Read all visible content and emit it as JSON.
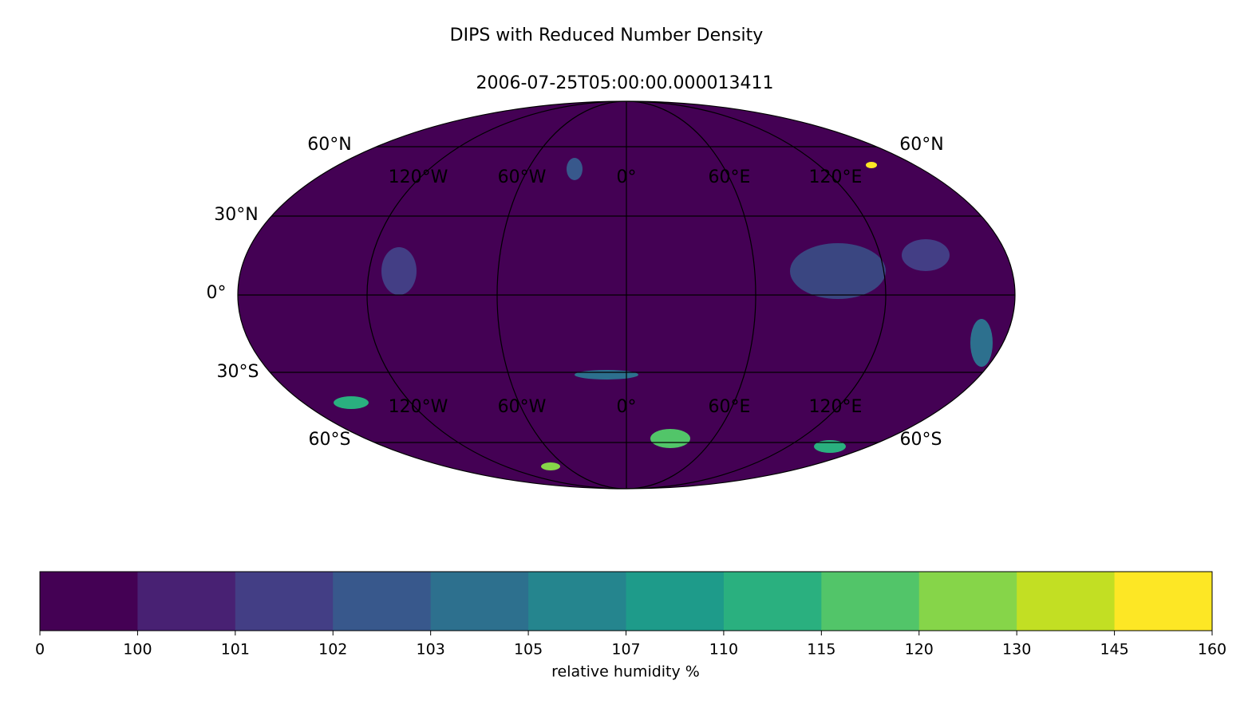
{
  "title": "DIPS with Reduced Number Density",
  "subtitle": "2006-07-25T05:00:00.000013411",
  "map": {
    "lat_labels_left": [
      "60°N",
      "30°N",
      "0°",
      "30°S",
      "60°S"
    ],
    "lat_labels_right": [
      "60°N",
      "60°S"
    ],
    "lon_labels": [
      "120°W",
      "60°W",
      "0°",
      "60°E",
      "120°E"
    ]
  },
  "colorbar": {
    "levels": [
      0,
      100,
      101,
      102,
      103,
      105,
      107,
      110,
      115,
      120,
      130,
      145,
      160
    ],
    "colors": [
      "#440154",
      "#482173",
      "#433e85",
      "#38588c",
      "#2d708e",
      "#25858e",
      "#1e9b8a",
      "#2ab07f",
      "#52c569",
      "#86d549",
      "#c2df23",
      "#fde725"
    ],
    "label": "relative humidity %"
  }
}
